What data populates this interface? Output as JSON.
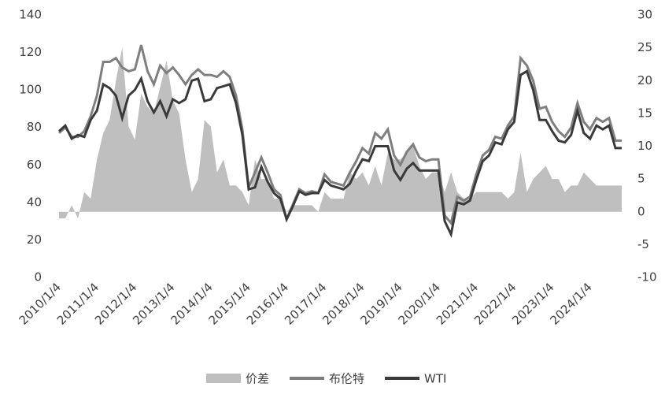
{
  "chart_data": {
    "type": "line",
    "categories": [
      "2010/1/4",
      null,
      null,
      null,
      null,
      null,
      "2011/1/4",
      null,
      null,
      null,
      null,
      null,
      "2012/1/4",
      null,
      null,
      null,
      null,
      null,
      "2013/1/4",
      null,
      null,
      null,
      null,
      null,
      "2014/1/4",
      null,
      null,
      null,
      null,
      null,
      "2015/1/4",
      null,
      null,
      null,
      null,
      null,
      "2016/1/4",
      null,
      null,
      null,
      null,
      null,
      "2017/1/4",
      null,
      null,
      null,
      null,
      null,
      "2018/1/4",
      null,
      null,
      null,
      null,
      null,
      "2019/1/4",
      null,
      null,
      null,
      null,
      null,
      "2020/1/4",
      null,
      null,
      null,
      null,
      null,
      "2021/1/4",
      null,
      null,
      null,
      null,
      null,
      "2022/1/4",
      null,
      null,
      null,
      null,
      null,
      "2023/1/4",
      null,
      null,
      null,
      null,
      null,
      "2024/1/4",
      null,
      null,
      null,
      null,
      null
    ],
    "series": [
      {
        "name": "价差",
        "color": "#bfbfbf",
        "axis": "y2",
        "kind": "area",
        "values": [
          -1,
          -1,
          1,
          -1,
          3,
          2,
          8,
          12,
          14,
          20,
          25,
          13,
          11,
          18,
          16,
          15,
          19,
          23,
          17,
          15,
          8,
          3,
          5,
          14,
          13,
          6,
          8,
          4,
          4,
          3,
          1,
          8,
          5,
          5,
          2,
          2,
          0,
          1,
          1,
          1,
          1,
          0,
          3,
          2,
          2,
          2,
          6,
          5,
          6,
          4,
          7,
          4,
          9,
          8,
          8,
          9,
          10,
          7,
          5,
          6,
          6,
          3,
          6,
          3,
          2,
          2,
          3,
          3,
          3,
          3,
          3,
          2,
          3,
          9,
          3,
          5,
          6,
          7,
          5,
          5,
          3,
          4,
          4,
          6,
          5,
          4,
          4,
          4,
          4,
          4
        ]
      },
      {
        "name": "布伦特",
        "color": "#7f7f7f",
        "values": [
          77,
          80,
          75,
          75,
          78,
          86,
          97,
          115,
          115,
          117,
          112,
          110,
          111,
          124,
          110,
          103,
          113,
          109,
          112,
          108,
          103,
          108,
          111,
          108,
          108,
          107,
          110,
          107,
          97,
          79,
          48,
          56,
          64,
          56,
          47,
          44,
          31,
          39,
          47,
          45,
          46,
          45,
          55,
          51,
          50,
          49,
          56,
          62,
          69,
          66,
          77,
          74,
          79,
          65,
          60,
          67,
          71,
          64,
          62,
          63,
          63,
          33,
          29,
          43,
          41,
          43,
          55,
          65,
          68,
          75,
          74,
          81,
          86,
          117,
          113,
          105,
          90,
          91,
          83,
          78,
          75,
          80,
          93,
          83,
          79,
          85,
          83,
          85,
          73,
          73
        ]
      },
      {
        "name": "WTI",
        "color": "#3a3a3a",
        "values": [
          78,
          81,
          74,
          76,
          75,
          84,
          89,
          103,
          101,
          97,
          85,
          97,
          100,
          106,
          94,
          88,
          94,
          86,
          95,
          93,
          95,
          105,
          106,
          94,
          95,
          101,
          102,
          103,
          93,
          76,
          47,
          48,
          59,
          51,
          45,
          42,
          31,
          38,
          46,
          44,
          45,
          45,
          52,
          49,
          48,
          47,
          50,
          57,
          63,
          62,
          70,
          70,
          70,
          57,
          52,
          58,
          61,
          57,
          57,
          57,
          57,
          30,
          23,
          40,
          39,
          41,
          52,
          62,
          65,
          72,
          71,
          79,
          83,
          108,
          110,
          100,
          84,
          84,
          78,
          73,
          72,
          76,
          89,
          77,
          74,
          81,
          79,
          81,
          69,
          69
        ]
      }
    ],
    "ylim": [
      0,
      140
    ],
    "yticks": [
      0,
      20,
      40,
      60,
      80,
      100,
      120,
      140
    ],
    "y2lim": [
      -10,
      30
    ],
    "y2ticks": [
      -10,
      -5,
      0,
      5,
      10,
      15,
      20,
      25,
      30
    ],
    "grid": false,
    "legend": "bottom"
  }
}
